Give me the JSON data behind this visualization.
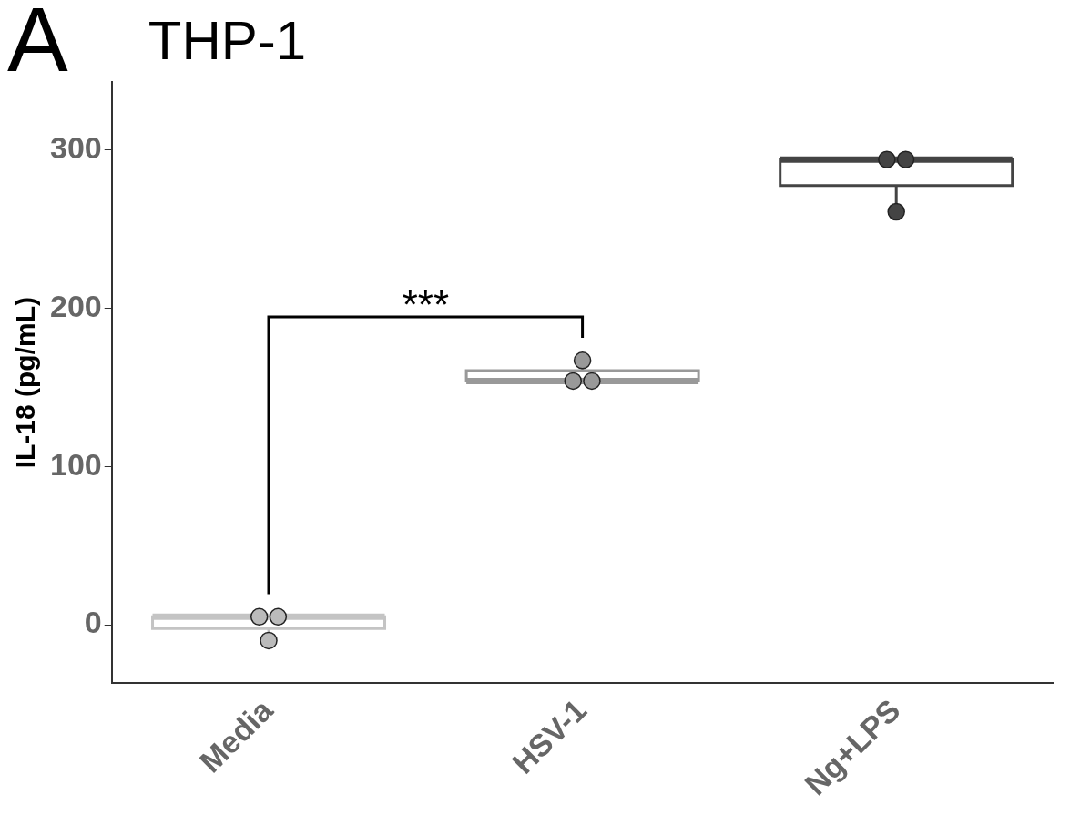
{
  "chart_data": {
    "type": "box",
    "title": "THP-1",
    "ylabel": "IL-18 (pg/mL)",
    "categories": [
      "Media",
      "HSV-1",
      "Ng+LPS"
    ],
    "boxes": [
      {
        "low": -10,
        "q1": -2.5,
        "median": 5,
        "q3": 5,
        "high": 5
      },
      {
        "low": 154,
        "q1": 154,
        "median": 154,
        "q3": 160.5,
        "high": 167
      },
      {
        "low": 261,
        "q1": 277.5,
        "median": 294,
        "q3": 294,
        "high": 294
      }
    ],
    "colors": [
      "#c4c4c4",
      "#999999",
      "#444444"
    ],
    "series": [
      {
        "type": "scatter",
        "x": [
          "Media",
          "Media",
          "Media",
          "HSV-1",
          "HSV-1",
          "HSV-1",
          "Ng+LPS",
          "Ng+LPS",
          "Ng+LPS"
        ],
        "values": [
          5,
          5,
          -10,
          167,
          154,
          154,
          294,
          294,
          261
        ],
        "colors": [
          "#bbbbbb",
          "#bbbbbb",
          "#bbbbbb",
          "#999999",
          "#999999",
          "#999999",
          "#444444",
          "#444444",
          "#444444"
        ]
      }
    ],
    "ylim": [
      -37,
      343
    ],
    "yticks": [
      0,
      100,
      200,
      300
    ],
    "marker": "circle",
    "grid": false,
    "legend": false,
    "annotations": [
      "A",
      "***"
    ]
  }
}
